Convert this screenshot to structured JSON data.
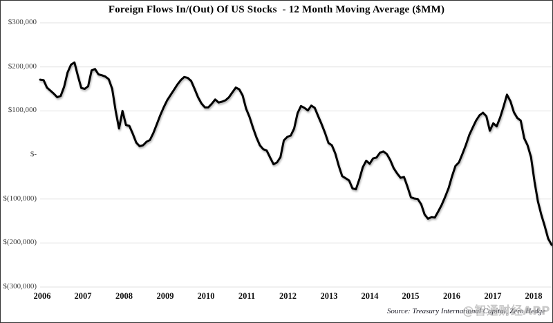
{
  "header": {
    "title": "Foreign Flows In/(Out) Of US Stocks  - 12 Month Moving Average ($MM)"
  },
  "chart_data": {
    "type": "line",
    "title": "Foreign Flows In/(Out) Of US Stocks - 12 Month Moving Average ($MM)",
    "unit": "$MM",
    "frequency": "monthly",
    "x_start": "2006-01",
    "x_end": "2018-06",
    "ylim": [
      -300000,
      300000
    ],
    "grid": "horizontal",
    "legend": "none",
    "grid_color": "#e2e2e2",
    "y_tick_values": [
      300000,
      200000,
      100000,
      0,
      -100000,
      -200000,
      -300000
    ],
    "y_tick_labels": [
      "$300,000",
      "$200,000",
      "$100,000",
      "$-",
      "$(100,000)",
      "$(200,000)",
      "$(300,000)"
    ],
    "x_tick_labels": [
      "2006",
      "2007",
      "2008",
      "2009",
      "2010",
      "2011",
      "2012",
      "2013",
      "2014",
      "2015",
      "2016",
      "2017",
      "2018"
    ],
    "zero_line": {
      "value": 0,
      "color": "#e1001e",
      "style": "dashed"
    },
    "series": [
      {
        "name": "Foreign flows into US stocks, 12-month moving average",
        "color": "#000000",
        "values_mm": [
          171000,
          170000,
          153000,
          146000,
          139000,
          131000,
          134000,
          155000,
          187000,
          205000,
          210000,
          180000,
          152000,
          150000,
          156000,
          192000,
          195000,
          183000,
          181000,
          178000,
          172000,
          150000,
          100000,
          60000,
          100000,
          68000,
          66000,
          48000,
          28000,
          20000,
          22000,
          30000,
          34000,
          50000,
          70000,
          90000,
          108000,
          124000,
          136000,
          148000,
          160000,
          170000,
          177000,
          175000,
          168000,
          150000,
          131000,
          117000,
          108000,
          108000,
          116000,
          126000,
          119000,
          121000,
          124000,
          131000,
          142000,
          153000,
          149000,
          135000,
          105000,
          86000,
          62000,
          40000,
          22000,
          13000,
          10000,
          -6000,
          -21000,
          -17000,
          -5000,
          33000,
          41000,
          44000,
          60000,
          95000,
          111000,
          107000,
          101000,
          112000,
          107000,
          88000,
          70000,
          50000,
          27000,
          22000,
          3000,
          -25000,
          -48000,
          -53000,
          -58000,
          -76000,
          -78000,
          -55000,
          -28000,
          -13000,
          -20000,
          -8000,
          -6000,
          5000,
          8000,
          2000,
          -12000,
          -30000,
          -42000,
          -52000,
          -50000,
          -72000,
          -96000,
          -99000,
          -100000,
          -112000,
          -135000,
          -145000,
          -141000,
          -142000,
          -128000,
          -113000,
          -95000,
          -75000,
          -48000,
          -25000,
          -17000,
          2000,
          22000,
          45000,
          62000,
          78000,
          90000,
          96000,
          88000,
          55000,
          72000,
          65000,
          85000,
          110000,
          137000,
          122000,
          97000,
          84000,
          78000,
          38000,
          22000,
          -5000,
          -60000,
          -105000,
          -136000,
          -162000,
          -190000,
          -204000
        ]
      }
    ]
  },
  "footer": {
    "source": "Source: Treasury International Capital, Zero Hedge",
    "watermark": "@智通财经APP"
  }
}
